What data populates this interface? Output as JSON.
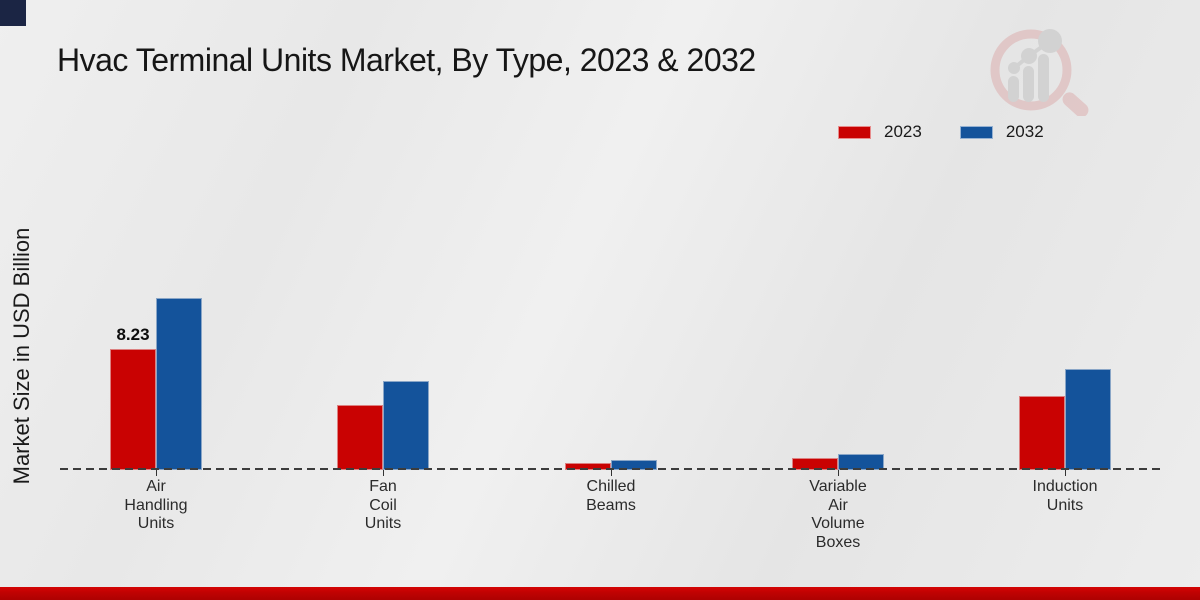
{
  "page": {
    "title": "Hvac Terminal Units Market, By Type, 2023 & 2032",
    "y_axis_label": "Market Size in USD Billion"
  },
  "legend": {
    "items": [
      {
        "label": "2023",
        "color": "#c90202"
      },
      {
        "label": "2032",
        "color": "#14539b"
      }
    ]
  },
  "colors": {
    "series_2023": "#c90202",
    "series_2032": "#14539b",
    "background": "#eaeaea",
    "bottom_strip": "#c00000",
    "corner_square": "#1b2544",
    "text": "#1a1a1a",
    "baseline": "#3c3c3c"
  },
  "watermark": {
    "name": "magnifier-bar-chart-logo"
  },
  "chart_data": {
    "type": "bar",
    "title": "Hvac Terminal Units Market, By Type, 2023 & 2032",
    "ylabel": "Market Size in USD Billion",
    "xlabel": "",
    "categories": [
      "Air Handling Units",
      "Fan Coil Units",
      "Chilled Beams",
      "Variable Air Volume Boxes",
      "Induction Units"
    ],
    "series": [
      {
        "name": "2023",
        "color": "#c90202",
        "values": [
          8.23,
          4.4,
          0.5,
          0.8,
          5.0
        ]
      },
      {
        "name": "2032",
        "color": "#14539b",
        "values": [
          11.7,
          6.05,
          0.7,
          1.1,
          6.9
        ]
      }
    ],
    "data_labels": [
      {
        "series_index": 0,
        "category_index": 0,
        "text": "8.23"
      }
    ],
    "ylim": [
      0,
      12.5
    ],
    "grid": false,
    "legend_position": "top-right",
    "baseline_style": "dashed"
  }
}
